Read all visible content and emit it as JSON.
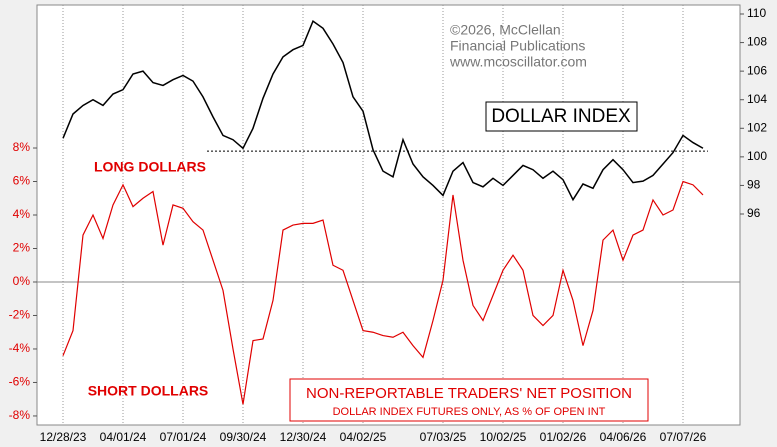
{
  "chart_data": {
    "type": "line",
    "copyright": [
      "©2026, McClellan",
      "Financial Publications",
      "www.mcoscillator.com"
    ],
    "annotations": [
      "LONG DOLLARS",
      "SHORT DOLLARS"
    ],
    "note": "DOLLAR INDEX FUTURES ONLY, AS % OF OPEN INT",
    "x": [
      "12/28/23",
      "01/12/24",
      "01/27/24",
      "02/11/24",
      "02/26/24",
      "03/15/24",
      "04/01/24",
      "04/16/24",
      "05/01/24",
      "05/16/24",
      "05/31/24",
      "06/15/24",
      "07/01/24",
      "07/16/24",
      "07/31/24",
      "08/15/24",
      "08/30/24",
      "09/14/24",
      "09/30/24",
      "10/15/24",
      "10/30/24",
      "11/14/24",
      "11/29/24",
      "12/14/24",
      "12/30/24",
      "01/14/25",
      "01/29/25",
      "02/13/25",
      "02/28/25",
      "03/17/25",
      "04/02/25",
      "04/13/25",
      "04/24/25",
      "05/05/25",
      "05/16/25",
      "05/27/25",
      "06/07/25",
      "06/20/25",
      "07/03/25",
      "07/18/25",
      "08/02/25",
      "08/17/25",
      "09/01/25",
      "09/16/25",
      "10/02/25",
      "10/17/25",
      "11/01/25",
      "11/16/25",
      "12/01/25",
      "12/16/25",
      "01/02/26",
      "01/17/26",
      "02/01/26",
      "02/16/26",
      "03/03/26",
      "03/20/26",
      "04/06/26",
      "04/21/26",
      "05/06/26",
      "05/21/26",
      "06/05/26",
      "06/20/26",
      "07/07/26",
      "07/17/26",
      "07/27/26"
    ],
    "xticks": [
      "12/28/23",
      "04/01/24",
      "07/01/24",
      "09/30/24",
      "12/30/24",
      "04/02/25",
      "07/03/25",
      "10/02/25",
      "01/02/26",
      "04/06/26",
      "07/07/26"
    ],
    "ylim": [
      -8.54,
      16.54
    ],
    "yticks": [
      {
        "value": -8,
        "label": "-8%"
      },
      {
        "value": -6,
        "label": "-6%"
      },
      {
        "value": -4,
        "label": "-4%"
      },
      {
        "value": -2,
        "label": "-2%"
      },
      {
        "value": 0,
        "label": "0%"
      },
      {
        "value": 2,
        "label": "2%"
      },
      {
        "value": 4,
        "label": "4%"
      },
      {
        "value": 6,
        "label": "6%"
      },
      {
        "value": 8,
        "label": "8%"
      }
    ],
    "y2lim": [
      81.23,
      110.63
    ],
    "y2ticks": [
      96,
      98,
      100,
      102,
      104,
      106,
      108,
      110
    ],
    "reference_line": 100.4,
    "series": [
      {
        "name": "DOLLAR INDEX",
        "color": "#000000",
        "axis": "y2",
        "values": [
          101.3,
          103.0,
          103.6,
          104.0,
          103.6,
          104.4,
          104.7,
          105.8,
          106.0,
          105.2,
          105.0,
          105.4,
          105.7,
          105.3,
          104.2,
          102.8,
          101.5,
          101.2,
          100.6,
          102.0,
          104.1,
          105.8,
          107.0,
          107.5,
          107.8,
          109.5,
          109.0,
          107.9,
          106.6,
          104.2,
          103.2,
          100.5,
          99.0,
          98.6,
          101.2,
          99.5,
          98.6,
          98.0,
          97.3,
          99.0,
          99.6,
          98.2,
          97.9,
          98.5,
          98.0,
          98.7,
          99.4,
          99.1,
          98.5,
          99.0,
          98.4,
          97.0,
          98.1,
          97.8,
          99.1,
          99.8,
          99.1,
          98.2,
          98.3,
          98.7,
          99.5,
          100.3,
          101.5,
          101.0,
          100.6
        ]
      },
      {
        "name": "NON-REPORTABLE TRADERS' NET POSITION",
        "color": "#e00000",
        "values": [
          -4.4,
          -2.9,
          2.8,
          4.0,
          2.6,
          4.6,
          5.8,
          4.5,
          5.0,
          5.4,
          2.2,
          4.6,
          4.4,
          3.6,
          3.1,
          1.3,
          -0.5,
          -4.0,
          -7.3,
          -3.5,
          -3.4,
          -1.1,
          3.1,
          3.4,
          3.5,
          3.5,
          3.7,
          1.0,
          0.7,
          -1.1,
          -2.9,
          -3.0,
          -3.2,
          -3.3,
          -3.0,
          -3.8,
          -4.5,
          -2.3,
          0.1,
          5.2,
          1.3,
          -1.4,
          -2.3,
          -0.8,
          0.7,
          1.6,
          0.7,
          -2.0,
          -2.6,
          -2.0,
          0.7,
          -1.1,
          -3.8,
          -1.7,
          2.5,
          3.1,
          1.3,
          2.8,
          3.1,
          4.9,
          4.0,
          4.3,
          6.0,
          5.8,
          5.2
        ]
      }
    ]
  }
}
